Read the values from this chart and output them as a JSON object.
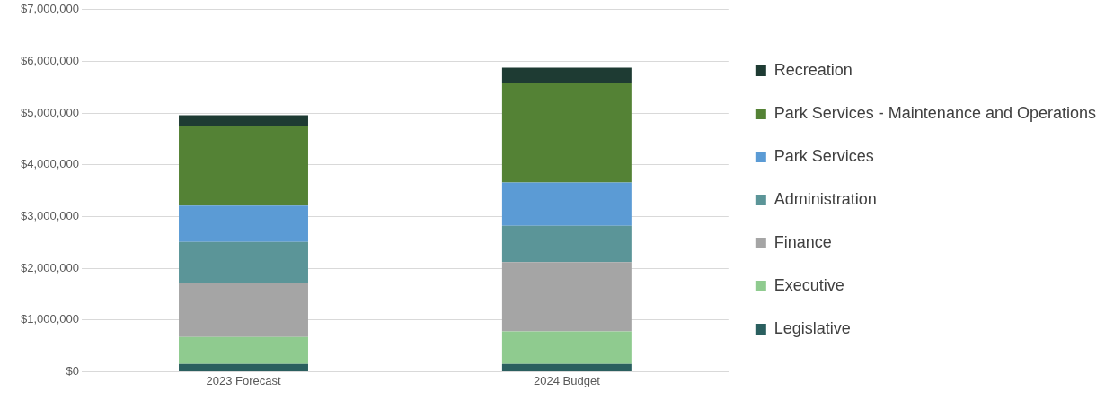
{
  "chart_data": {
    "type": "bar",
    "stacked": true,
    "categories": [
      "2023 Forecast",
      "2024 Budget"
    ],
    "series": [
      {
        "name": "Legislative",
        "color": "#2a5f5f",
        "values": [
          150000,
          150000
        ]
      },
      {
        "name": "Executive",
        "color": "#8fcb8f",
        "values": [
          520000,
          630000
        ]
      },
      {
        "name": "Finance",
        "color": "#a5a5a5",
        "values": [
          1040000,
          1340000
        ]
      },
      {
        "name": "Administration",
        "color": "#5b9598",
        "values": [
          800000,
          700000
        ]
      },
      {
        "name": "Park Services",
        "color": "#5b9bd5",
        "values": [
          700000,
          840000
        ]
      },
      {
        "name": "Park Services - Maintenance and Operations",
        "color": "#548235",
        "values": [
          1550000,
          1930000
        ]
      },
      {
        "name": "Recreation",
        "color": "#1e3b33",
        "values": [
          200000,
          290000
        ]
      }
    ],
    "ylim": [
      0,
      7000000
    ],
    "yticks": [
      {
        "value": 0,
        "label": "$0"
      },
      {
        "value": 1000000,
        "label": "$1,000,000"
      },
      {
        "value": 2000000,
        "label": "$2,000,000"
      },
      {
        "value": 3000000,
        "label": "$3,000,000"
      },
      {
        "value": 4000000,
        "label": "$4,000,000"
      },
      {
        "value": 5000000,
        "label": "$5,000,000"
      },
      {
        "value": 6000000,
        "label": "$6,000,000"
      },
      {
        "value": 7000000,
        "label": "$7,000,000"
      }
    ],
    "grid": "y",
    "legend": "right"
  }
}
